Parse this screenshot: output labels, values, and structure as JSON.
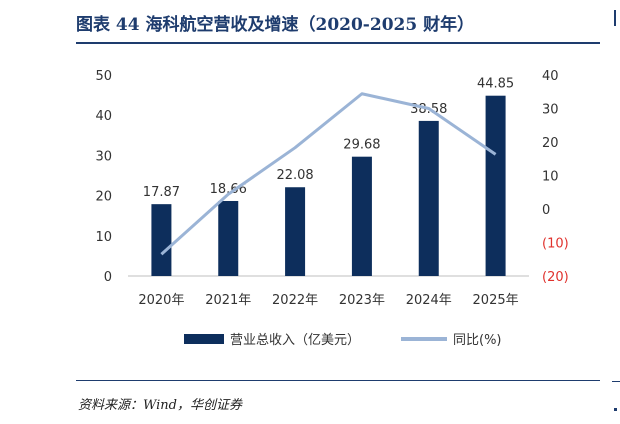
{
  "header": {
    "title": "图表 44   海科航空营收及增速（2020-2025 财年）"
  },
  "source": {
    "text": "资料来源：Wind，华创证券"
  },
  "colors": {
    "bar": "#0d2e5c",
    "line": "#9bb4d6",
    "title": "#1e3c6e",
    "negative_tick": "#e0322d",
    "text": "#333333"
  },
  "chart_data": {
    "type": "bar",
    "categories": [
      "2020年",
      "2021年",
      "2022年",
      "2023年",
      "2024年",
      "2025年"
    ],
    "series": [
      {
        "name": "营业总收入（亿美元）",
        "type": "bar",
        "axis": "left",
        "values": [
          17.87,
          18.66,
          22.08,
          29.68,
          38.58,
          44.85
        ],
        "labels": [
          "17.87",
          "18.66",
          "22.08",
          "29.68",
          "38.58",
          "44.85"
        ]
      },
      {
        "name": "同比(%)",
        "type": "line",
        "axis": "right",
        "values": [
          -13.5,
          4.4,
          18.3,
          34.4,
          30.0,
          16.3
        ]
      }
    ],
    "ylim_left": [
      0,
      50
    ],
    "yticks_left": [
      "0",
      "10",
      "20",
      "30",
      "40",
      "50"
    ],
    "ylim_right": [
      -20,
      40
    ],
    "yticks_right": [
      {
        "value": 40,
        "label": "40"
      },
      {
        "value": 30,
        "label": "30"
      },
      {
        "value": 20,
        "label": "20"
      },
      {
        "value": 10,
        "label": "10"
      },
      {
        "value": 0,
        "label": "0"
      },
      {
        "value": -10,
        "label": "(10)"
      },
      {
        "value": -20,
        "label": "(20)"
      }
    ],
    "grid": false,
    "legend_position": "bottom"
  }
}
